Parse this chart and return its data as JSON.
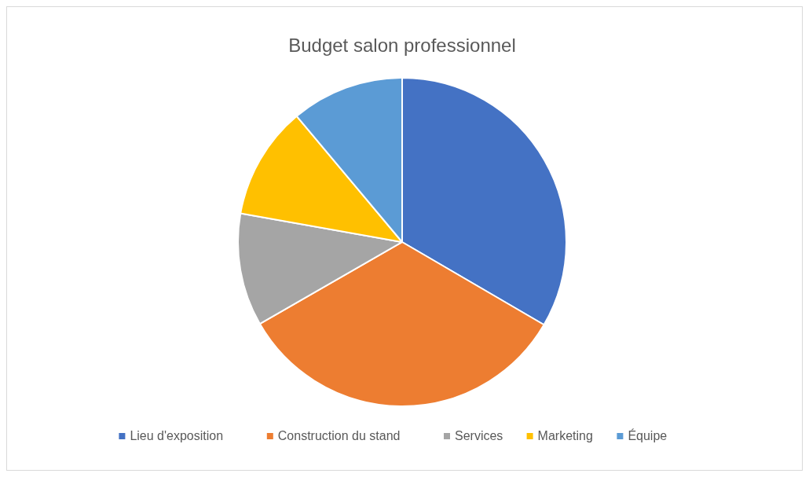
{
  "chart_data": {
    "type": "pie",
    "title": "Budget salon professionnel",
    "categories": [
      "Lieu d'exposition",
      "Construction du stand",
      "Services",
      "Marketing",
      "Équipe"
    ],
    "values": [
      33.4,
      33.3,
      11.1,
      11.1,
      11.1
    ],
    "colors": [
      "#4472c4",
      "#ed7d31",
      "#a5a5a5",
      "#ffc000",
      "#5b9bd5"
    ],
    "legend": "bottom"
  }
}
